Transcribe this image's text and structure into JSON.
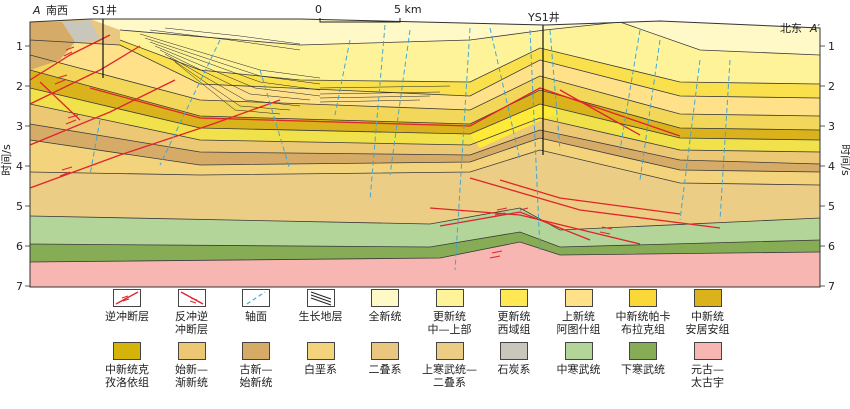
{
  "section": {
    "left_label": "A",
    "left_direction": "南西",
    "right_label": "A′",
    "right_direction": "北东",
    "wells": [
      {
        "name": "S1井"
      },
      {
        "name": "YS1井"
      }
    ],
    "scale": {
      "start": "0",
      "end": "5 km"
    },
    "y_axis_label": "时间/s",
    "y_ticks": [
      "1",
      "2",
      "3",
      "4",
      "5",
      "6",
      "7"
    ]
  },
  "legend": [
    {
      "id": "thrust",
      "label_lines": [
        "逆冲断层"
      ],
      "kind": "thrust"
    },
    {
      "id": "backthrust",
      "label_lines": [
        "反冲逆",
        "冲断层"
      ],
      "kind": "backthrust"
    },
    {
      "id": "axial",
      "label_lines": [
        "轴面"
      ],
      "kind": "axial"
    },
    {
      "id": "growth",
      "label_lines": [
        "生长地层"
      ],
      "kind": "growth"
    },
    {
      "id": "holocene",
      "label_lines": [
        "全新统"
      ],
      "kind": "fill",
      "color": "#fff9c8"
    },
    {
      "id": "pleist-mid-up",
      "label_lines": [
        "更新统",
        "中—上部"
      ],
      "kind": "fill",
      "color": "#fff39a"
    },
    {
      "id": "pleist-xiyu",
      "label_lines": [
        "更新统",
        "西域组"
      ],
      "kind": "fill",
      "color": "#ffe853"
    },
    {
      "id": "plio-atushi",
      "label_lines": [
        "上新统",
        "阿图什组"
      ],
      "kind": "fill",
      "color": "#ffe18a"
    },
    {
      "id": "mio-pakabulake",
      "label_lines": [
        "中新统帕卡",
        "布拉克组"
      ],
      "kind": "fill",
      "color": "#f9d838"
    },
    {
      "id": "mio-anjuan",
      "label_lines": [
        "中新统",
        "安居安组"
      ],
      "kind": "fill",
      "color": "#d9b21c"
    },
    {
      "id": "mio-keziluoyi",
      "label_lines": [
        "中新统克",
        "孜洛依组"
      ],
      "kind": "fill",
      "color": "#d4b30a"
    },
    {
      "id": "eo-olig",
      "label_lines": [
        "始新—",
        "渐新统"
      ],
      "kind": "fill",
      "color": "#ecc875"
    },
    {
      "id": "paleo-eo",
      "label_lines": [
        "古新—",
        "始新统"
      ],
      "kind": "fill",
      "color": "#d6ab67"
    },
    {
      "id": "cretaceous",
      "label_lines": [
        "白垩系"
      ],
      "kind": "fill",
      "color": "#f3d37c"
    },
    {
      "id": "permian",
      "label_lines": [
        "二叠系"
      ],
      "kind": "fill",
      "color": "#e9c780"
    },
    {
      "id": "ucamb-perm",
      "label_lines": [
        "上寒武统—",
        "二叠系"
      ],
      "kind": "fill",
      "color": "#eccd86"
    },
    {
      "id": "carboniferous",
      "label_lines": [
        "石炭系"
      ],
      "kind": "fill",
      "color": "#c9c6bb"
    },
    {
      "id": "mid-camb",
      "label_lines": [
        "中寒武统"
      ],
      "kind": "fill",
      "color": "#b4d59a"
    },
    {
      "id": "low-camb",
      "label_lines": [
        "下寒武统"
      ],
      "kind": "fill",
      "color": "#86ac55"
    },
    {
      "id": "protero-arch",
      "label_lines": [
        "元古—",
        "太古宇"
      ],
      "kind": "fill",
      "color": "#f7b6b1"
    }
  ]
}
